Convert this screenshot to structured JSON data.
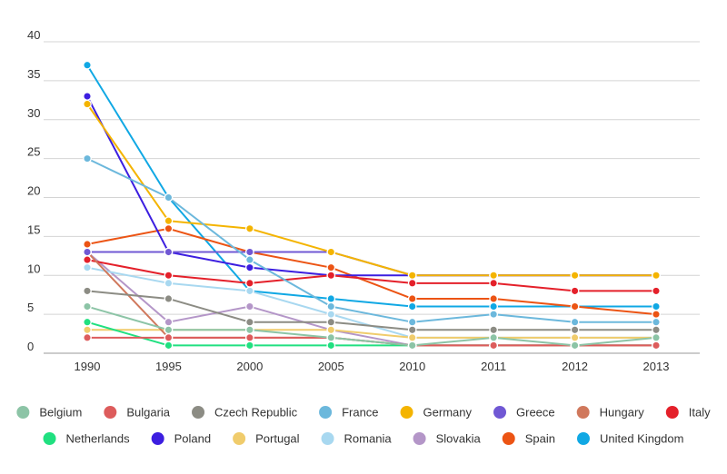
{
  "chart_data": {
    "type": "line",
    "title": "",
    "xlabel": "",
    "ylabel": "",
    "ylim": [
      0,
      40
    ],
    "yticks": [
      0,
      5,
      10,
      15,
      20,
      25,
      30,
      35,
      40
    ],
    "grid": true,
    "legend_position": "bottom",
    "categories": [
      "1990",
      "1995",
      "2000",
      "2005",
      "2010",
      "2011",
      "2012",
      "2013"
    ],
    "series": [
      {
        "name": "Belgium",
        "color": "#8cc4a6",
        "values": [
          6,
          3,
          3,
          2,
          1,
          2,
          1,
          2
        ]
      },
      {
        "name": "Bulgaria",
        "color": "#dd5c5c",
        "values": [
          2,
          2,
          2,
          2,
          1,
          1,
          1,
          1
        ]
      },
      {
        "name": "Czech Republic",
        "color": "#8c8c84",
        "values": [
          8,
          7,
          4,
          4,
          3,
          3,
          3,
          3
        ]
      },
      {
        "name": "France",
        "color": "#6cb8dc",
        "values": [
          25,
          20,
          12,
          6,
          4,
          5,
          4,
          4
        ]
      },
      {
        "name": "Germany",
        "color": "#f4b400",
        "values": [
          32,
          17,
          16,
          13,
          10,
          10,
          10,
          10
        ]
      },
      {
        "name": "Greece",
        "color": "#7058d4",
        "values": [
          13,
          13,
          13,
          13,
          10,
          10,
          10,
          10
        ]
      },
      {
        "name": "Hungary",
        "color": "#d0785c",
        "values": [
          13,
          2,
          2,
          2,
          1,
          1,
          1,
          1
        ]
      },
      {
        "name": "Italy",
        "color": "#e4202a",
        "values": [
          12,
          10,
          9,
          10,
          9,
          9,
          8,
          8
        ]
      },
      {
        "name": "Netherlands",
        "color": "#20e080",
        "values": [
          4,
          1,
          1,
          1,
          1,
          1,
          1,
          1
        ]
      },
      {
        "name": "Poland",
        "color": "#3c1ee0",
        "values": [
          33,
          13,
          11,
          10,
          10,
          10,
          10,
          10
        ]
      },
      {
        "name": "Portugal",
        "color": "#f0cc6c",
        "values": [
          3,
          3,
          3,
          3,
          2,
          2,
          2,
          2
        ]
      },
      {
        "name": "Romania",
        "color": "#a8d8f0",
        "values": [
          11,
          9,
          8,
          5,
          2,
          2,
          2,
          2
        ]
      },
      {
        "name": "Slovakia",
        "color": "#b496c8",
        "values": [
          13,
          4,
          6,
          3,
          1,
          1,
          1,
          1
        ]
      },
      {
        "name": "Spain",
        "color": "#ec5414",
        "values": [
          14,
          16,
          13,
          11,
          7,
          7,
          6,
          5
        ]
      },
      {
        "name": "United Kingdom",
        "color": "#10a8e4",
        "values": [
          37,
          20,
          8,
          7,
          6,
          6,
          6,
          6
        ]
      }
    ]
  }
}
